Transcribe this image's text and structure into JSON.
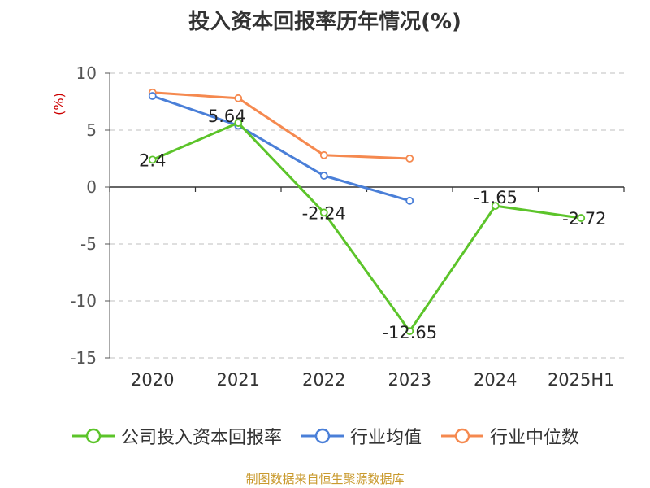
{
  "title": "投入资本回报率历年情况(%)",
  "source": "制图数据来自恒生聚源数据库",
  "chart_data": {
    "type": "line",
    "title": "投入资本回报率历年情况(%)",
    "ylabel": "(%)",
    "xlabel": "",
    "categories": [
      "2020",
      "2021",
      "2022",
      "2023",
      "2024",
      "2025H1"
    ],
    "ylim": [
      -15,
      10
    ],
    "yticks": [
      10,
      5,
      0,
      -5,
      -10,
      -15
    ],
    "grid": true,
    "legend_position": "bottom",
    "series": [
      {
        "name": "公司投入资本回报率",
        "color": "#5cc42a",
        "values": [
          2.4,
          5.64,
          -2.24,
          -12.65,
          -1.65,
          -2.72
        ],
        "labels": [
          "2.4",
          "5.64",
          "-2.24",
          "-12.65",
          "-1.65",
          "-2.72"
        ]
      },
      {
        "name": "行业均值",
        "color": "#4a7fd8",
        "values": [
          8.0,
          5.4,
          1.0,
          -1.2,
          null,
          null
        ]
      },
      {
        "name": "行业中位数",
        "color": "#f5894f",
        "values": [
          8.3,
          7.8,
          2.8,
          2.5,
          null,
          null
        ]
      }
    ]
  }
}
